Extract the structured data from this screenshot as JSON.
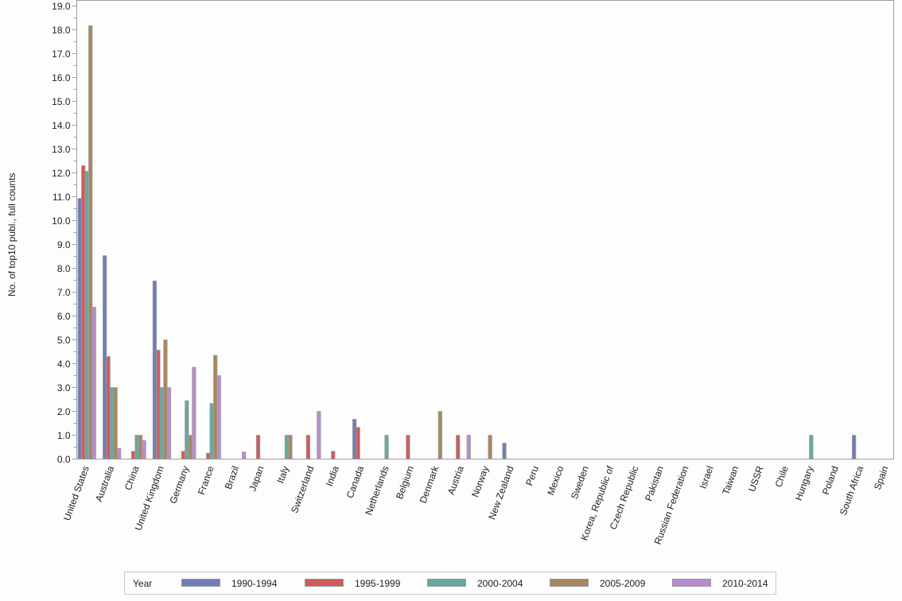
{
  "chart_data": {
    "type": "bar",
    "title": "",
    "xlabel": "",
    "ylabel": "No. of top10 publ., full counts",
    "ylim": [
      0,
      19
    ],
    "yticks": [
      "0.0",
      "1.0",
      "2.0",
      "3.0",
      "4.0",
      "5.0",
      "6.0",
      "7.0",
      "8.0",
      "9.0",
      "10.0",
      "11.0",
      "12.0",
      "13.0",
      "14.0",
      "15.0",
      "16.0",
      "17.0",
      "18.0",
      "19.0"
    ],
    "grid": false,
    "legend_position": "bottom",
    "legend_title": "Year",
    "categories": [
      "United States",
      "Australia",
      "China",
      "United Kingdom",
      "Germany",
      "France",
      "Brazil",
      "Japan",
      "Italy",
      "Switzerland",
      "India",
      "Canada",
      "Netherlands",
      "Belgium",
      "Denmark",
      "Austria",
      "Norway",
      "New Zealand",
      "Peru",
      "Mexico",
      "Sweden",
      "Korea, Republic of",
      "Czech Republic",
      "Pakistan",
      "Russian Federation",
      "Israel",
      "Taiwan",
      "USSR",
      "Chile",
      "Hungary",
      "Poland",
      "South Africa",
      "Spain"
    ],
    "series": [
      {
        "name": "1990-1994",
        "color": "#6f7db5",
        "values": [
          10.93,
          8.53,
          0,
          7.47,
          0,
          0,
          0,
          0,
          0,
          0,
          0,
          1.67,
          0,
          0,
          0,
          0,
          0,
          0.67,
          0,
          0,
          0,
          0,
          0,
          0,
          0,
          0,
          0,
          0,
          0,
          0,
          0,
          1.0,
          0
        ]
      },
      {
        "name": "1995-1999",
        "color": "#d05b5b",
        "values": [
          12.3,
          4.3,
          0.33,
          4.57,
          0.33,
          0.25,
          0,
          1.0,
          0,
          1.0,
          0.33,
          1.33,
          0,
          1.0,
          0,
          1.0,
          0,
          0,
          0,
          0,
          0,
          0,
          0,
          0,
          0,
          0,
          0,
          0,
          0,
          0,
          0,
          0,
          0
        ]
      },
      {
        "name": "2000-2004",
        "color": "#66a8a0",
        "values": [
          12.07,
          3.0,
          1.0,
          3.0,
          2.45,
          2.33,
          0,
          0,
          1.0,
          0,
          0,
          0,
          1.0,
          0,
          0,
          0,
          0,
          0,
          0,
          0,
          0,
          0,
          0,
          0,
          0,
          0,
          0,
          0,
          0,
          1.0,
          0,
          0,
          0
        ]
      },
      {
        "name": "2005-2009",
        "color": "#a8875e",
        "values": [
          18.17,
          3.0,
          1.0,
          5.0,
          1.0,
          4.35,
          0,
          0,
          1.0,
          0,
          0,
          0,
          0,
          0,
          2.0,
          0,
          1.0,
          0,
          0,
          0,
          0,
          0,
          0,
          0,
          0,
          0,
          0,
          0,
          0,
          0,
          0,
          0,
          0
        ]
      },
      {
        "name": "2010-2014",
        "color": "#b98ccd",
        "values": [
          6.37,
          0.45,
          0.78,
          3.0,
          3.85,
          3.5,
          0.3,
          0,
          0,
          2.0,
          0,
          0,
          0,
          0,
          0,
          1.0,
          0,
          0,
          0,
          0,
          0,
          0,
          0,
          0,
          0,
          0,
          0,
          0,
          0,
          0,
          0,
          0,
          0
        ]
      }
    ]
  }
}
